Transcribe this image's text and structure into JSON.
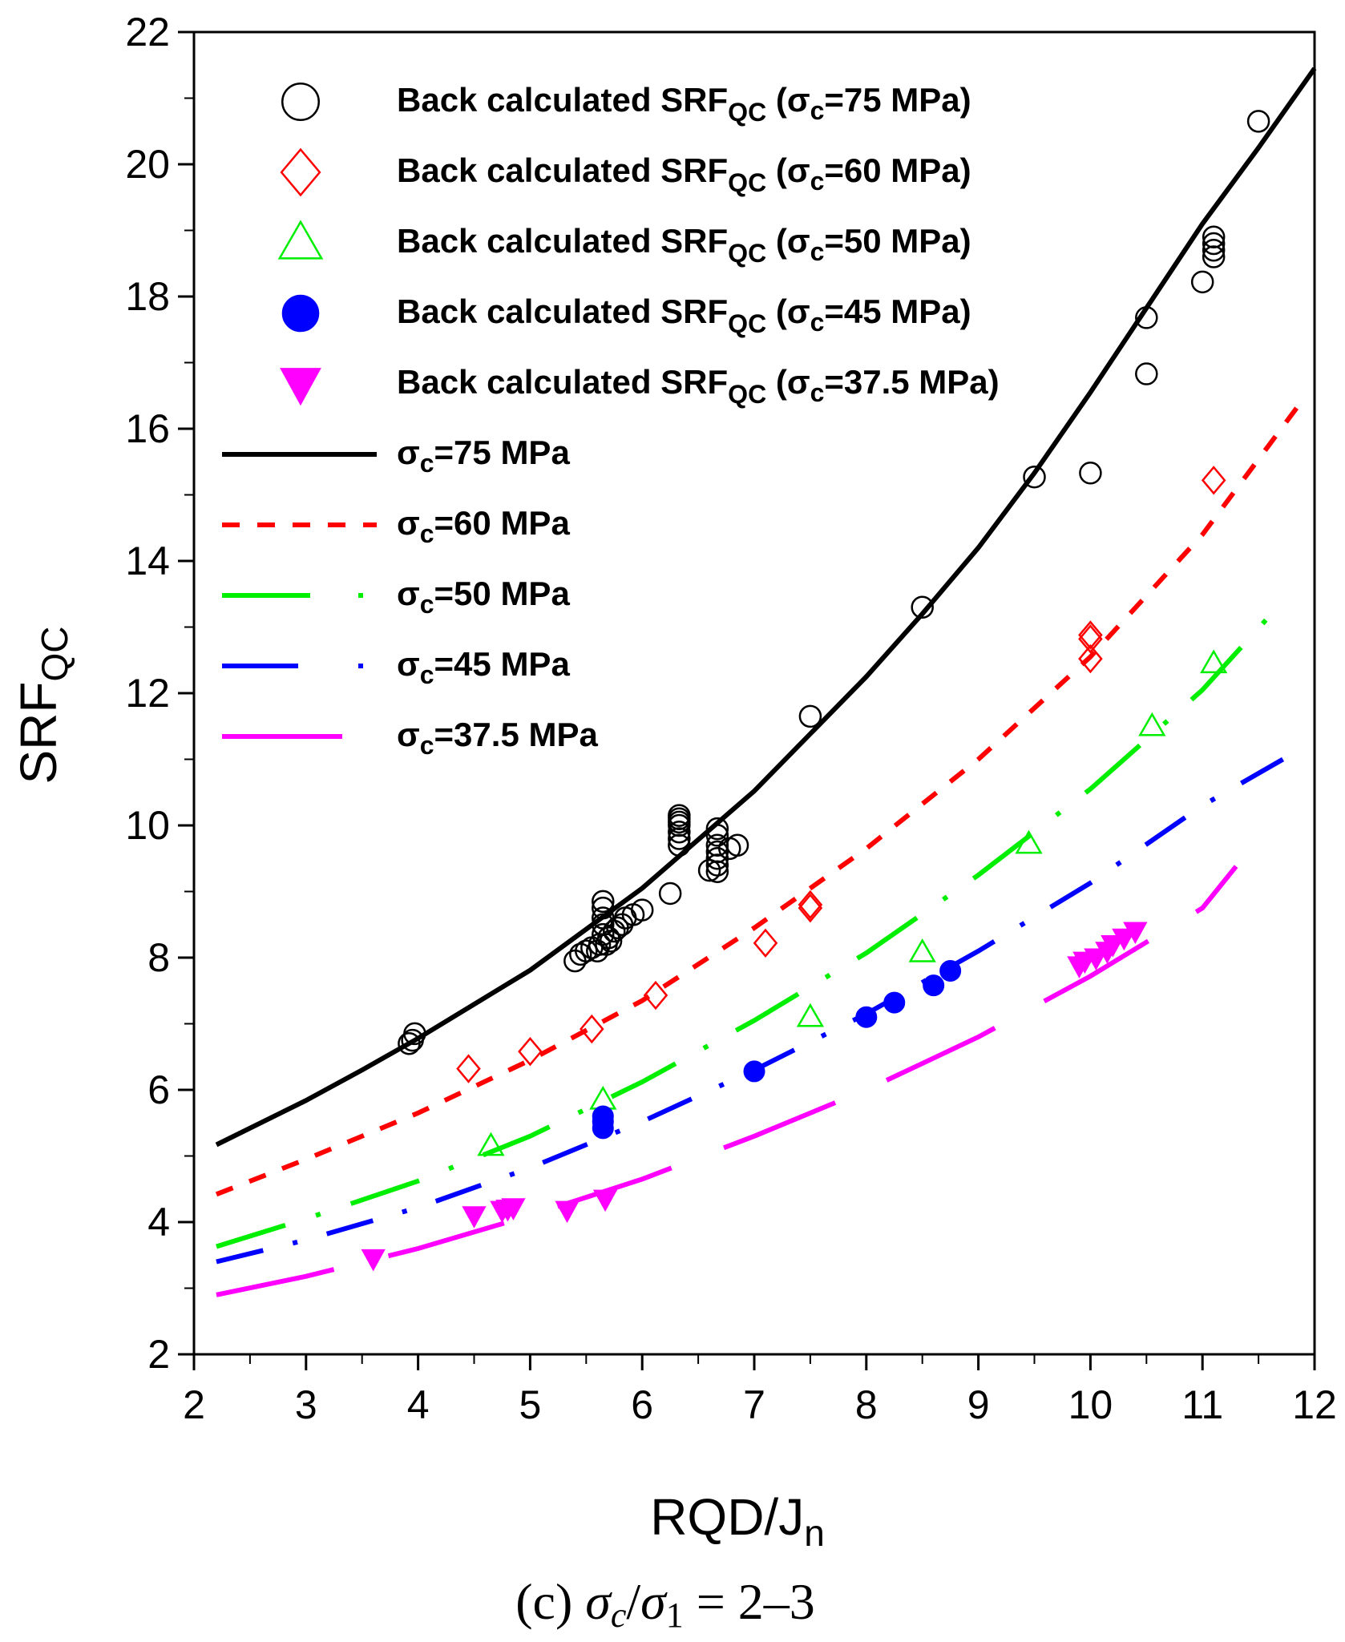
{
  "chart_data": {
    "type": "scatter",
    "title": "",
    "xlabel": {
      "main": "RQD/J",
      "sub": "n"
    },
    "ylabel": {
      "main": "SRF",
      "sub": "QC"
    },
    "caption": {
      "prefix": "(c) ",
      "sigma_c": "σ",
      "sigma_c_sub": "c",
      "slash": "/",
      "sigma_1": "σ",
      "sigma_1_sub": "1",
      "suffix": " = 2–3"
    },
    "xlim": [
      2,
      12
    ],
    "ylim": [
      2,
      22
    ],
    "x_ticks": [
      "2",
      "3",
      "4",
      "5",
      "6",
      "7",
      "8",
      "9",
      "10",
      "11",
      "12"
    ],
    "y_ticks": [
      "2",
      "4",
      "6",
      "8",
      "10",
      "12",
      "14",
      "16",
      "18",
      "20",
      "22"
    ],
    "grid": false,
    "legend_position": "top-left",
    "colors": {
      "s75": "#000000",
      "s60": "#ff0000",
      "s50": "#00ee00",
      "s45": "#0000ff",
      "s37": "#ff00ff"
    },
    "legend": [
      {
        "key": "s75p",
        "kind": "marker",
        "marker": "open-circle",
        "color": "#000000",
        "pre": "Back calculated SRF",
        "sub": "QC",
        "mid": " (σ",
        "sub2": "c",
        "post": "=75 MPa)"
      },
      {
        "key": "s60p",
        "kind": "marker",
        "marker": "open-diamond",
        "color": "#ff0000",
        "pre": "Back calculated SRF",
        "sub": "QC",
        "mid": " (σ",
        "sub2": "c",
        "post": "=60 MPa)"
      },
      {
        "key": "s50p",
        "kind": "marker",
        "marker": "open-triangle",
        "color": "#00ee00",
        "pre": "Back calculated SRF",
        "sub": "QC",
        "mid": " (σ",
        "sub2": "c",
        "post": "=50 MPa)"
      },
      {
        "key": "s45p",
        "kind": "marker",
        "marker": "filled-circle",
        "color": "#0000ff",
        "pre": "Back calculated SRF",
        "sub": "QC",
        "mid": " (σ",
        "sub2": "c",
        "post": "=45 MPa)"
      },
      {
        "key": "s37p",
        "kind": "marker",
        "marker": "filled-down-triangle",
        "color": "#ff00ff",
        "pre": "Back calculated SRF",
        "sub": "QC",
        "mid": " (σ",
        "sub2": "c",
        "post": "=37.5 MPa)"
      },
      {
        "key": "s75l",
        "kind": "line",
        "dash": "solid",
        "color": "#000000",
        "pre": "σ",
        "sub": "c",
        "post": "=75 MPa"
      },
      {
        "key": "s60l",
        "kind": "line",
        "dash": "short",
        "color": "#ff0000",
        "pre": "σ",
        "sub": "c",
        "post": "=60 MPa"
      },
      {
        "key": "s50l",
        "kind": "line",
        "dash": "long-dot",
        "color": "#00ee00",
        "pre": "σ",
        "sub": "c",
        "post": "=50 MPa"
      },
      {
        "key": "s45l",
        "kind": "line",
        "dash": "dash-dot",
        "color": "#0000ff",
        "pre": "σ",
        "sub": "c",
        "post": "=45 MPa"
      },
      {
        "key": "s37l",
        "kind": "line",
        "dash": "long",
        "color": "#ff00ff",
        "pre": "σ",
        "sub": "c",
        "post": "=37.5 MPa"
      }
    ],
    "series": [
      {
        "name": "Back calculated SRF_QC (σc=75 MPa)",
        "kind": "points",
        "marker": "open-circle",
        "color": "#000000",
        "x": [
          3.92,
          3.95,
          3.97,
          5.4,
          5.45,
          5.5,
          5.55,
          5.6,
          5.62,
          5.65,
          5.65,
          5.65,
          5.65,
          5.65,
          5.68,
          5.7,
          5.72,
          5.75,
          5.78,
          5.82,
          5.85,
          5.92,
          6.0,
          6.25,
          6.33,
          6.33,
          6.33,
          6.33,
          6.33,
          6.33,
          6.33,
          6.6,
          6.67,
          6.67,
          6.67,
          6.67,
          6.67,
          6.67,
          6.67,
          6.78,
          6.85,
          7.5,
          8.5,
          9.5,
          10.0,
          10.5,
          10.5,
          11.0,
          11.1,
          11.1,
          11.1,
          11.1,
          11.5
        ],
        "y": [
          6.7,
          6.75,
          6.85,
          7.95,
          8.05,
          8.1,
          8.15,
          8.1,
          8.2,
          8.35,
          8.5,
          8.6,
          8.75,
          8.85,
          8.2,
          8.3,
          8.25,
          8.4,
          8.45,
          8.5,
          8.6,
          8.65,
          8.72,
          8.97,
          9.7,
          9.8,
          9.9,
          10.0,
          10.05,
          10.1,
          10.15,
          9.32,
          9.3,
          9.4,
          9.5,
          9.6,
          9.7,
          9.85,
          9.95,
          9.65,
          9.7,
          11.65,
          13.3,
          15.27,
          15.33,
          16.83,
          17.68,
          18.22,
          18.6,
          18.7,
          18.8,
          18.9,
          20.65
        ]
      },
      {
        "name": "Back calculated SRF_QC (σc=60 MPa)",
        "kind": "points",
        "marker": "open-diamond",
        "color": "#ff0000",
        "x": [
          4.45,
          5.0,
          5.55,
          6.12,
          7.1,
          7.5,
          7.5,
          10.0,
          10.0,
          10.0,
          11.1
        ],
        "y": [
          6.32,
          6.58,
          6.92,
          7.43,
          8.22,
          8.75,
          8.8,
          12.52,
          12.82,
          12.88,
          15.22
        ]
      },
      {
        "name": "Back calculated SRF_QC (σc=50 MPa)",
        "kind": "points",
        "marker": "open-triangle",
        "color": "#00ee00",
        "x": [
          4.65,
          5.65,
          7.5,
          8.5,
          9.45,
          10.55,
          11.1
        ],
        "y": [
          5.15,
          5.85,
          7.1,
          8.08,
          9.72,
          11.5,
          12.45
        ]
      },
      {
        "name": "Back calculated SRF_QC (σc=45 MPa)",
        "kind": "points",
        "marker": "filled-circle",
        "color": "#0000ff",
        "x": [
          5.65,
          5.65,
          5.65,
          7.0,
          8.0,
          8.25,
          8.6,
          8.75
        ],
        "y": [
          5.42,
          5.52,
          5.6,
          6.28,
          7.1,
          7.32,
          7.58,
          7.8
        ]
      },
      {
        "name": "Back calculated SRF_QC (σc=37.5 MPa)",
        "kind": "points",
        "marker": "filled-down-triangle",
        "color": "#ff00ff",
        "x": [
          3.6,
          4.5,
          4.75,
          4.8,
          4.85,
          5.33,
          5.67,
          9.9,
          9.95,
          10.05,
          10.15,
          10.2,
          10.3,
          10.4
        ],
        "y": [
          3.45,
          4.1,
          4.18,
          4.2,
          4.22,
          4.18,
          4.35,
          7.88,
          7.95,
          8.0,
          8.1,
          8.2,
          8.3,
          8.4
        ]
      },
      {
        "name": "σc=75 MPa",
        "kind": "curve",
        "dash": "solid",
        "color": "#000000",
        "x": [
          2.2,
          3.0,
          3.5,
          4.0,
          5.0,
          6.0,
          7.0,
          8.0,
          8.5,
          9.0,
          9.5,
          10.0,
          11.0,
          11.5,
          12.0
        ],
        "y": [
          5.17,
          5.84,
          6.3,
          6.78,
          7.81,
          9.05,
          10.52,
          12.25,
          13.2,
          14.2,
          15.33,
          16.55,
          19.1,
          20.25,
          21.45
        ]
      },
      {
        "name": "σc=60 MPa",
        "kind": "curve",
        "dash": "short",
        "color": "#ff0000",
        "x": [
          2.2,
          3.0,
          4.0,
          5.0,
          6.0,
          7.0,
          8.0,
          9.0,
          10.0,
          11.0,
          11.9
        ],
        "y": [
          4.42,
          4.95,
          5.65,
          6.45,
          7.35,
          8.45,
          9.65,
          11.0,
          12.55,
          14.4,
          16.45
        ]
      },
      {
        "name": "σc=50 MPa",
        "kind": "curve",
        "dash": "long-dot",
        "color": "#00ee00",
        "x": [
          2.2,
          3.0,
          4.0,
          5.0,
          6.0,
          7.0,
          8.0,
          9.0,
          10.0,
          11.0,
          11.75
        ],
        "y": [
          3.63,
          4.05,
          4.62,
          5.3,
          6.12,
          7.05,
          8.07,
          9.25,
          10.55,
          12.05,
          13.45
        ]
      },
      {
        "name": "σc=45 MPa",
        "kind": "curve",
        "dash": "dash-dot",
        "color": "#0000ff",
        "x": [
          2.2,
          3.0,
          4.0,
          5.0,
          6.0,
          7.0,
          8.0,
          9.0,
          10.0,
          11.0,
          11.8
        ],
        "y": [
          3.4,
          3.73,
          4.22,
          4.82,
          5.52,
          6.3,
          7.15,
          8.1,
          9.13,
          10.3,
          11.08
        ]
      },
      {
        "name": "σc=37.5 MPa",
        "kind": "curve",
        "dash": "long",
        "color": "#ff00ff",
        "x": [
          2.2,
          3.0,
          4.0,
          5.0,
          6.0,
          7.0,
          8.0,
          9.0,
          10.0,
          11.0,
          11.3
        ],
        "y": [
          2.9,
          3.18,
          3.6,
          4.1,
          4.65,
          5.3,
          6.0,
          6.8,
          7.72,
          8.75,
          9.38
        ]
      }
    ]
  }
}
